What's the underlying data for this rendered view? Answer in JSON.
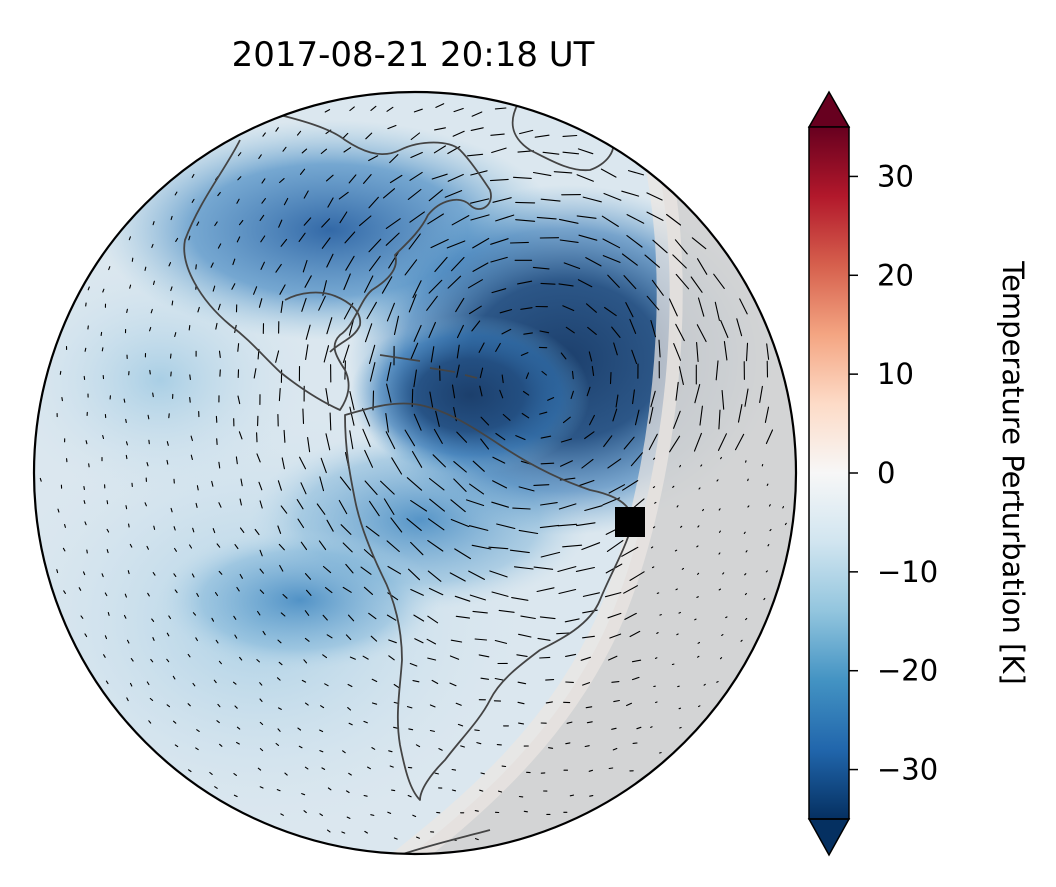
{
  "title": "2017-08-21  20:18 UT",
  "colorbar": {
    "label": "Temperature Perturbation [K]",
    "range": [
      -35,
      35
    ],
    "extend": "both",
    "ticks": [
      {
        "value": 30,
        "label": "30"
      },
      {
        "value": 20,
        "label": "20"
      },
      {
        "value": 10,
        "label": "10"
      },
      {
        "value": 0,
        "label": "0"
      },
      {
        "value": -10,
        "label": "−10"
      },
      {
        "value": -20,
        "label": "−20"
      },
      {
        "value": -30,
        "label": "−30"
      }
    ],
    "colormap": [
      "#053061",
      "#2166ac",
      "#4393c3",
      "#92c5de",
      "#d1e5f0",
      "#f7f7f7",
      "#fddbc7",
      "#f4a582",
      "#d6604d",
      "#b2182b",
      "#67001f"
    ]
  },
  "map": {
    "projection": "orthographic",
    "region": "Americas",
    "marker": {
      "color": "#000000",
      "shape": "square"
    },
    "night_shade_color": "#d2d2d2",
    "coastline_color": "#444444"
  }
}
